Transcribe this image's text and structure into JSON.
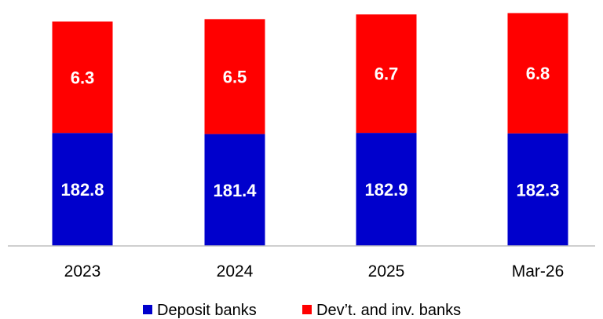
{
  "chart_data": {
    "type": "bar",
    "stacked": true,
    "categories": [
      "2023",
      "2024",
      "2025",
      "Mar-26"
    ],
    "series": [
      {
        "name": "Deposit banks",
        "color": "#0000cc",
        "values": [
          182.8,
          181.4,
          182.9,
          182.3
        ]
      },
      {
        "name": "Dev’t. and inv. banks",
        "color": "#ff0000",
        "values": [
          6.3,
          6.5,
          6.7,
          6.8
        ]
      }
    ],
    "grid": false,
    "legend": "bottom",
    "data_labels": true
  }
}
